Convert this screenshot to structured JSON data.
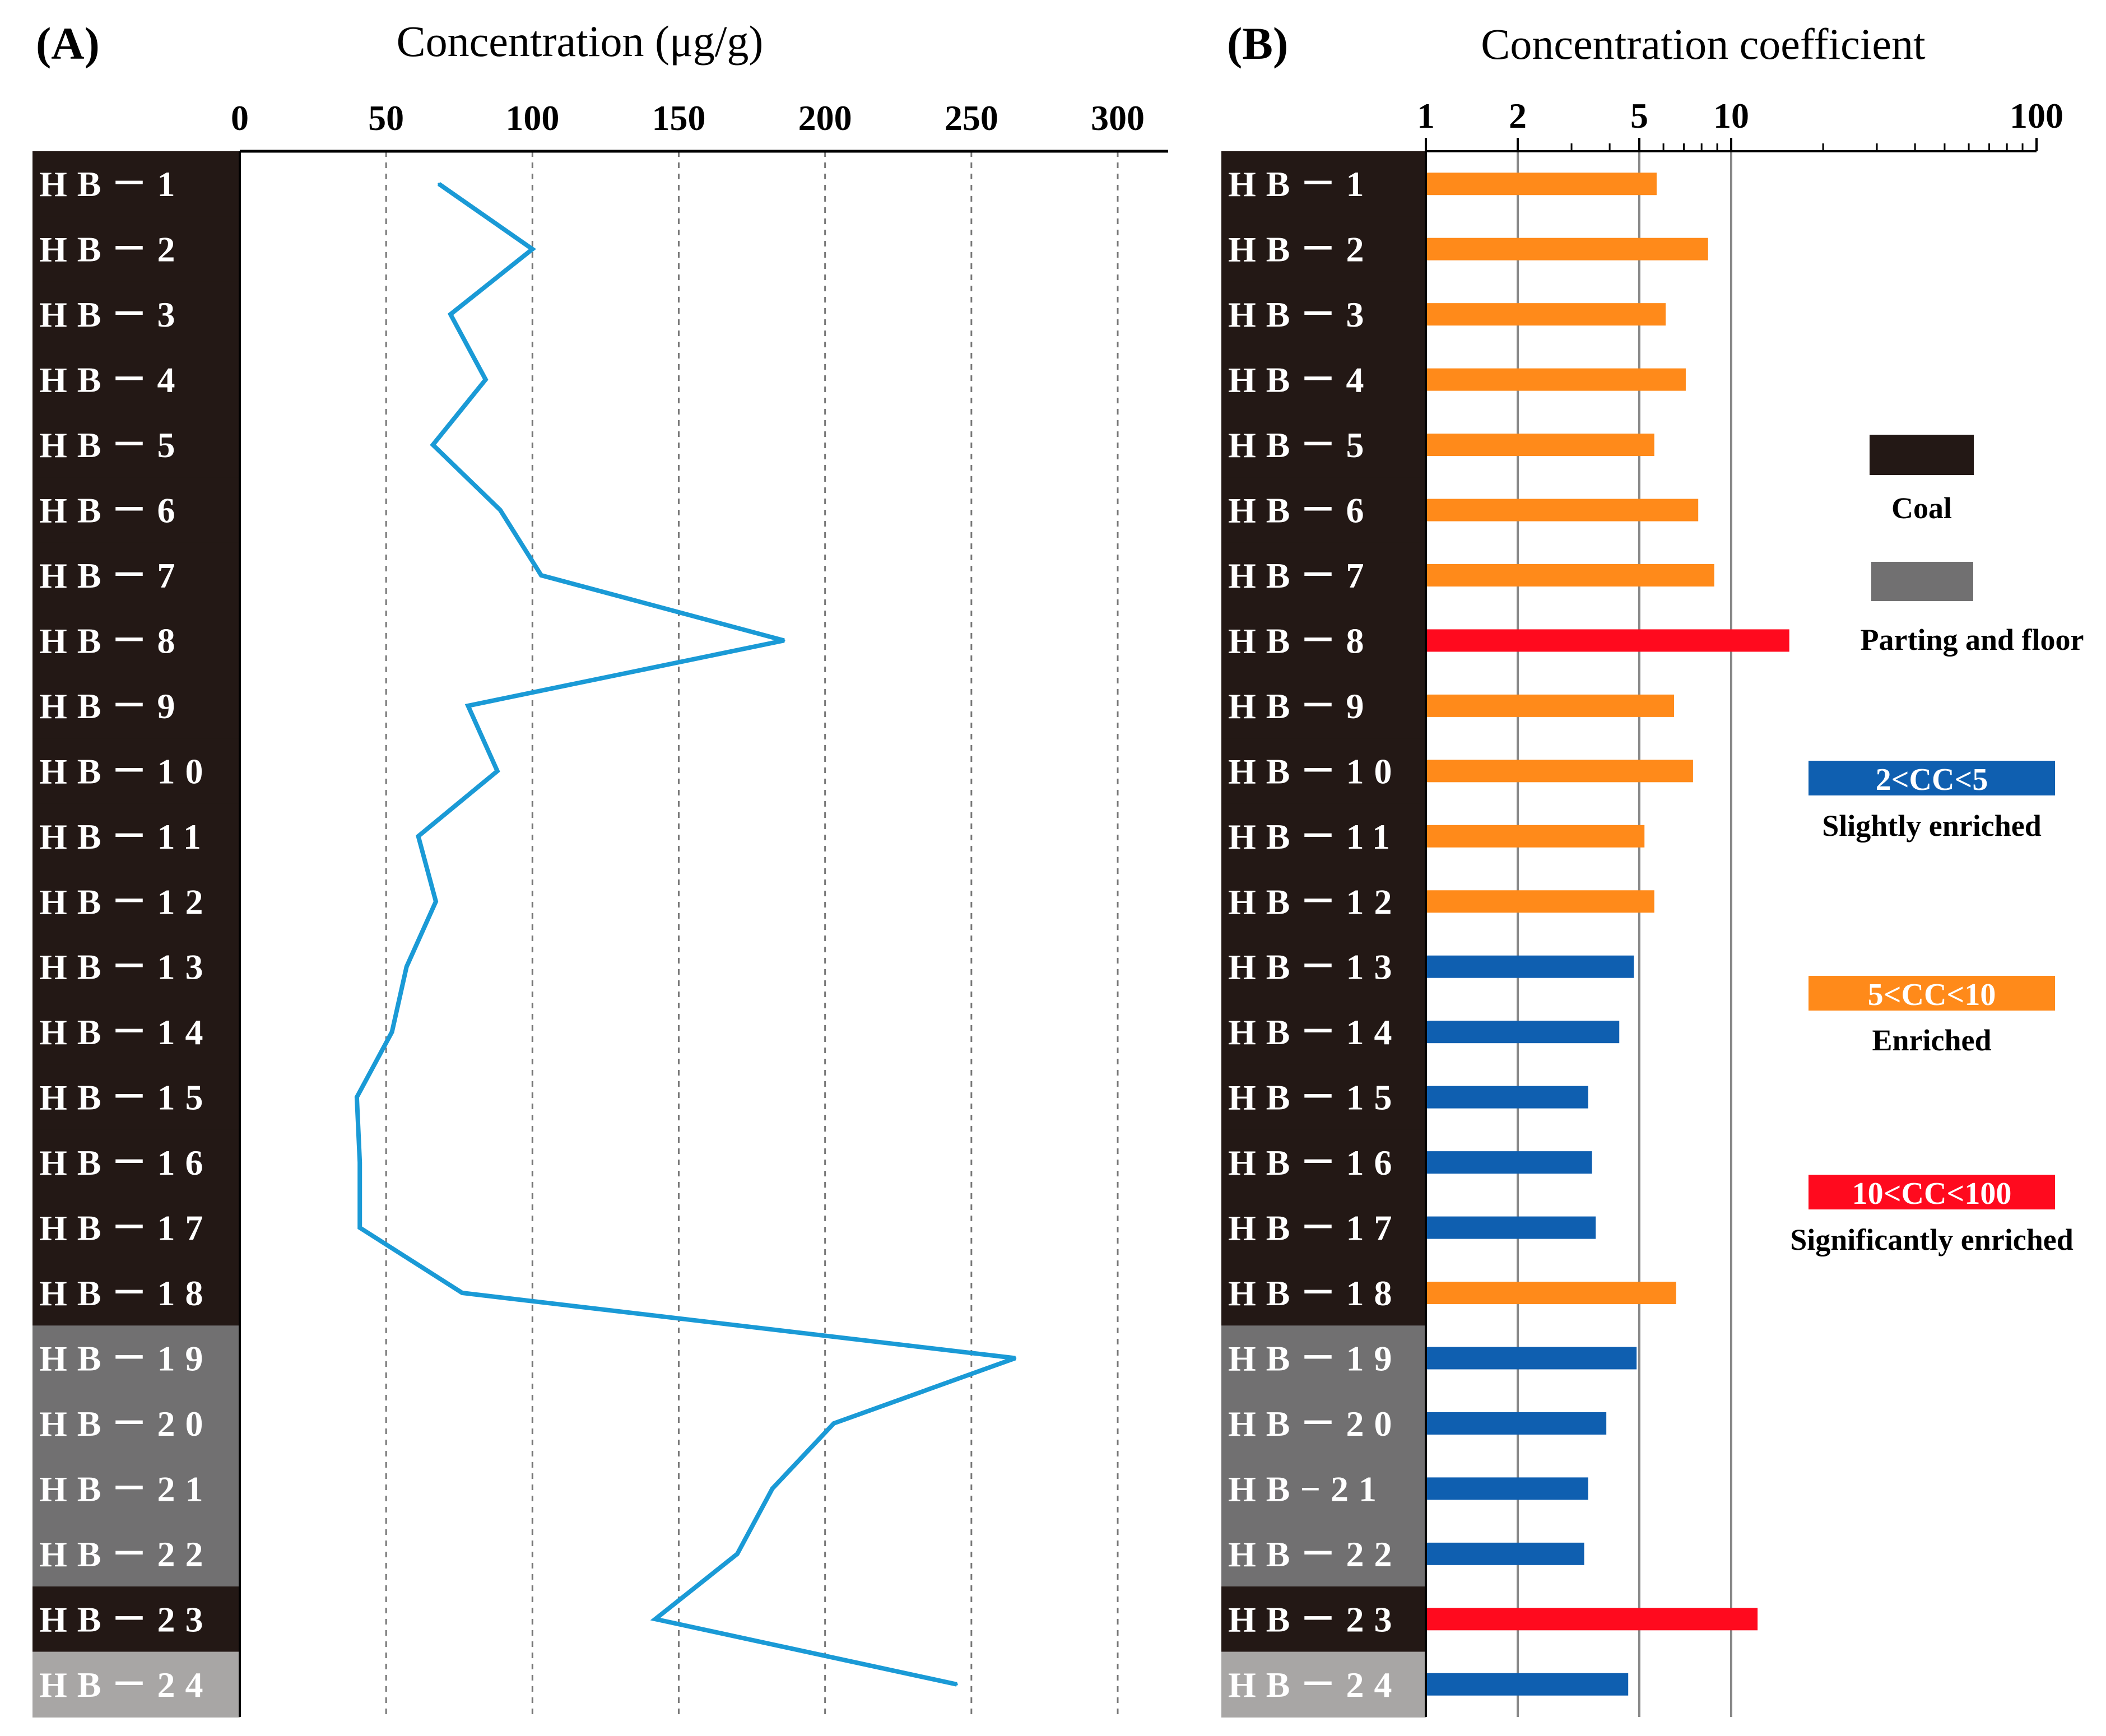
{
  "panel_labels": [
    "(A)",
    "(B)"
  ],
  "chart_data": [
    {
      "type": "line",
      "panel": "(A)",
      "title": "Concentration (μg/g)",
      "xlabel": "Concentration (μg/g)",
      "x_ticks": [
        "0",
        "50",
        "100",
        "150",
        "200",
        "250",
        "300"
      ],
      "xlim": [
        0,
        320
      ],
      "grid": "dotted-vertical",
      "categories": [
        "HB－1",
        "HB－2",
        "HB－3",
        "HB－4",
        "HB－5",
        "HB－6",
        "HB－7",
        "HB－8",
        "HB－9",
        "HB－10",
        "HB－11",
        "HB－12",
        "HB－13",
        "HB－14",
        "HB－15",
        "HB－16",
        "HB－17",
        "HB－18",
        "HB－19",
        "HB－20",
        "HB－21",
        "HB－22",
        "HB－23",
        "HB－24"
      ],
      "sample_type": [
        "coal",
        "coal",
        "coal",
        "coal",
        "coal",
        "coal",
        "coal",
        "coal",
        "coal",
        "coal",
        "coal",
        "coal",
        "coal",
        "coal",
        "coal",
        "coal",
        "coal",
        "coal",
        "parting",
        "parting",
        "parting",
        "parting",
        "coal",
        "floor"
      ],
      "values": [
        68,
        100,
        72,
        84,
        66,
        89,
        103,
        186,
        78,
        88,
        61,
        67,
        57,
        52,
        40,
        41,
        41,
        76,
        265,
        203,
        182,
        170,
        142,
        245
      ],
      "line_color": "#1a9ad6"
    },
    {
      "type": "bar",
      "panel": "(B)",
      "title": "Concentration  coefficient",
      "xlabel": "Concentration  coefficient",
      "x_scale": "log",
      "x_ticks": [
        "1",
        "2",
        "5",
        "10",
        "100"
      ],
      "xlim": [
        1,
        100
      ],
      "categories": [
        "HB－1",
        "HB－2",
        "HB－3",
        "HB－4",
        "HB－5",
        "HB－6",
        "HB－7",
        "HB－8",
        "HB－9",
        "HB－10",
        "HB－11",
        "HB－12",
        "HB－13",
        "HB－14",
        "HB－15",
        "HB－16",
        "HB－17",
        "HB－18",
        "HB－19",
        "HB－20",
        "HB−21",
        "HB－22",
        "HB－23",
        "HB－24"
      ],
      "values": [
        5.7,
        8.4,
        6.1,
        7.1,
        5.6,
        7.8,
        8.8,
        15.5,
        6.5,
        7.5,
        5.2,
        5.6,
        4.8,
        4.3,
        3.4,
        3.5,
        3.6,
        6.6,
        4.9,
        3.9,
        3.4,
        3.3,
        12.2,
        4.6
      ],
      "classes": [
        "enriched",
        "enriched",
        "enriched",
        "enriched",
        "enriched",
        "enriched",
        "enriched",
        "significant",
        "enriched",
        "enriched",
        "enriched",
        "enriched",
        "slight",
        "slight",
        "slight",
        "slight",
        "slight",
        "enriched",
        "slight",
        "slight",
        "slight",
        "slight",
        "significant",
        "slight"
      ]
    }
  ],
  "colors": {
    "coal": "#231815",
    "parting": "#717071",
    "floor": "#a8a6a5",
    "slight": "#0f5fb0",
    "enriched": "#ff8a1a",
    "significant": "#ff0a1e",
    "line": "#1a9ad6"
  },
  "legend": {
    "coal_label": "Coal",
    "parting_label": "Parting and floor",
    "slight_range": "2<CC<5",
    "slight_label": "Slightly enriched",
    "enriched_range": "5<CC<10",
    "enriched_label": "Enriched",
    "significant_range": "10<CC<100",
    "significant_label": "Significantly enriched"
  }
}
